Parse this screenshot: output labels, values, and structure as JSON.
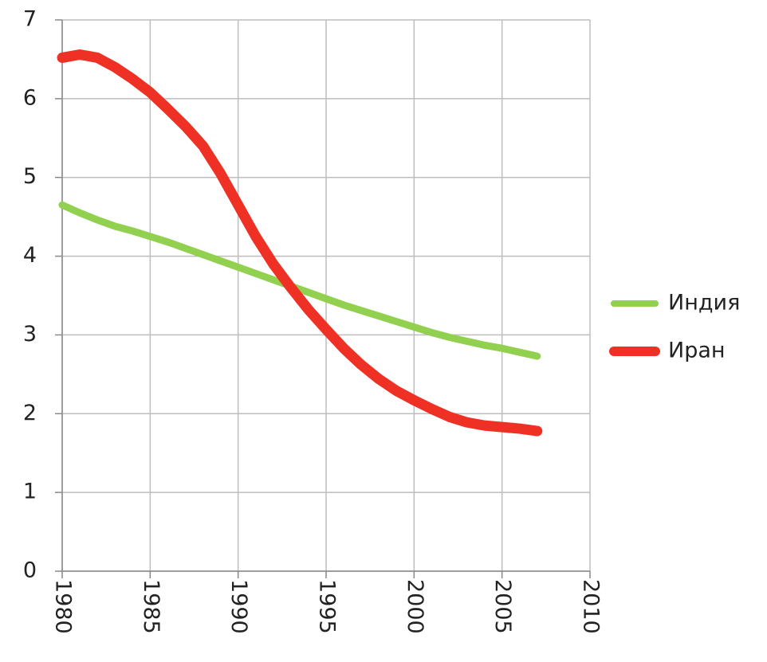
{
  "chart_data": {
    "type": "line",
    "x": [
      1980,
      1981,
      1982,
      1983,
      1984,
      1985,
      1986,
      1987,
      1988,
      1989,
      1990,
      1991,
      1992,
      1993,
      1994,
      1995,
      1996,
      1997,
      1998,
      1999,
      2000,
      2001,
      2002,
      2003,
      2004,
      2005,
      2006,
      2007
    ],
    "series": [
      {
        "name": "Индия",
        "color": "#92d050",
        "values": [
          4.65,
          4.55,
          4.46,
          4.38,
          4.32,
          4.25,
          4.18,
          4.1,
          4.02,
          3.94,
          3.86,
          3.78,
          3.7,
          3.62,
          3.54,
          3.46,
          3.38,
          3.31,
          3.24,
          3.17,
          3.1,
          3.03,
          2.97,
          2.92,
          2.87,
          2.83,
          2.78,
          2.73
        ]
      },
      {
        "name": "Иран",
        "color": "#ee3124",
        "values": [
          6.52,
          6.56,
          6.52,
          6.4,
          6.25,
          6.08,
          5.87,
          5.65,
          5.4,
          5.05,
          4.65,
          4.25,
          3.9,
          3.6,
          3.32,
          3.07,
          2.83,
          2.62,
          2.44,
          2.29,
          2.17,
          2.06,
          1.96,
          1.89,
          1.85,
          1.83,
          1.81,
          1.78
        ]
      }
    ],
    "xlim": [
      1980,
      2010
    ],
    "xticks": [
      1980,
      1985,
      1990,
      1995,
      2000,
      2005,
      2010
    ],
    "ylim": [
      0,
      7
    ],
    "yticks": [
      0,
      1,
      2,
      3,
      4,
      5,
      6,
      7
    ],
    "grid": true,
    "legend": "right"
  }
}
